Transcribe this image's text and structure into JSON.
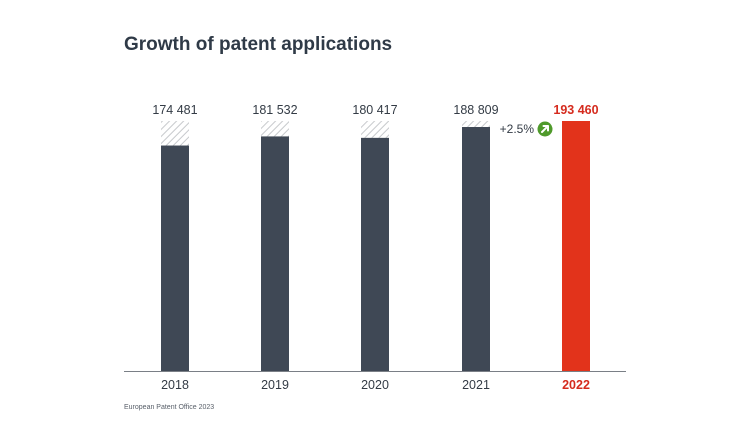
{
  "chart_data": {
    "type": "bar",
    "title": "Growth of patent applications",
    "categories": [
      "2018",
      "2019",
      "2020",
      "2021",
      "2022"
    ],
    "values": [
      174481,
      181532,
      180417,
      188809,
      193460
    ],
    "data_labels": [
      "174 481",
      "181 532",
      "180 417",
      "188 809",
      "193 460"
    ],
    "reference_value": 193460,
    "highlight_index": 4,
    "growth_annotation": "+2.5%",
    "growth_icon": "arrow-up-right-icon",
    "xlabel": "",
    "ylabel": "",
    "ylim": [
      0,
      193460
    ],
    "grid": false,
    "legend": "none",
    "colors": {
      "bar": "#3f4855",
      "highlight": "#e2331b",
      "highlight_label": "#d52b1e",
      "label": "#333b45",
      "hatch": "#b9bcc0",
      "badge": "#4f9a2b",
      "axis": "#7a7f86"
    }
  },
  "source": "European Patent Office 2023"
}
